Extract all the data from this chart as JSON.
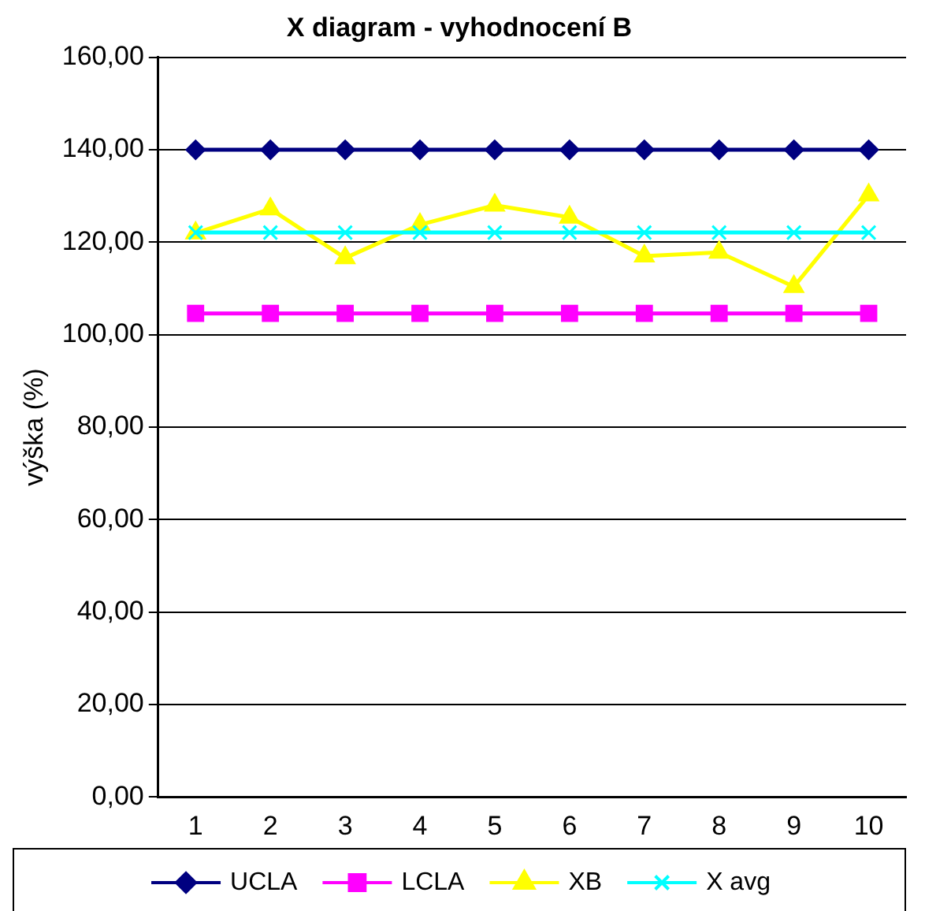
{
  "chart_data": {
    "type": "line",
    "title": "X diagram - vyhodnocení B",
    "ylabel": "výška (%)",
    "categories": [
      "1",
      "2",
      "3",
      "4",
      "5",
      "6",
      "7",
      "8",
      "9",
      "10"
    ],
    "series": [
      {
        "name": "UCLA",
        "color": "#000080",
        "marker": "diamond",
        "values": [
          140,
          140,
          140,
          140,
          140,
          140,
          140,
          140,
          140,
          140
        ]
      },
      {
        "name": "LCLA",
        "color": "#ff00ff",
        "marker": "square",
        "values": [
          104.6,
          104.6,
          104.6,
          104.6,
          104.6,
          104.6,
          104.6,
          104.6,
          104.6,
          104.6
        ]
      },
      {
        "name": "XB",
        "color": "#ffff00",
        "marker": "triangle",
        "values": [
          122,
          127.2,
          116.6,
          123.8,
          128,
          125.4,
          117,
          117.8,
          110.4,
          130.2
        ]
      },
      {
        "name": "X avg",
        "color": "#00ffff",
        "marker": "cross",
        "values": [
          122.1,
          122.1,
          122.1,
          122.1,
          122.1,
          122.1,
          122.1,
          122.1,
          122.1,
          122.1
        ]
      }
    ],
    "ylim": [
      0,
      160
    ],
    "yticks": [
      {
        "value": 0,
        "label": "0,00"
      },
      {
        "value": 20,
        "label": "20,00"
      },
      {
        "value": 40,
        "label": "40,00"
      },
      {
        "value": 60,
        "label": "60,00"
      },
      {
        "value": 80,
        "label": "80,00"
      },
      {
        "value": 100,
        "label": "100,00"
      },
      {
        "value": 120,
        "label": "120,00"
      },
      {
        "value": 140,
        "label": "140,00"
      },
      {
        "value": 160,
        "label": "160,00"
      }
    ],
    "grid": "y",
    "legend": "bottom"
  }
}
